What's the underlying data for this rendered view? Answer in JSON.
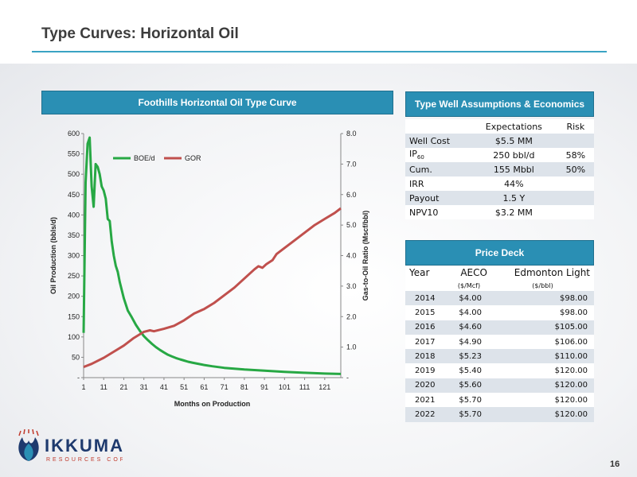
{
  "page": {
    "title": "Type Curves: Horizontal Oil",
    "page_number": "16",
    "logo_text": "IKKUMA",
    "logo_subtext": "RESOURCES CORP."
  },
  "chart_data": {
    "type": "line",
    "title": "Foothills Horizontal Oil Type Curve",
    "xlabel": "Months on Production",
    "ylabel": "Oil Production (bbls/d)",
    "y2label": "Gas-to-Oil Ratio (Mscf/bbl)",
    "xlim": [
      1,
      129
    ],
    "ylim": [
      0,
      600
    ],
    "y2lim": [
      0,
      8
    ],
    "x_ticks": [
      1,
      11,
      21,
      31,
      41,
      51,
      61,
      71,
      81,
      91,
      101,
      111,
      121
    ],
    "y_ticks": [
      "-",
      "50",
      "100",
      "150",
      "200",
      "250",
      "300",
      "350",
      "400",
      "450",
      "500",
      "550",
      "600"
    ],
    "y2_ticks": [
      "-",
      "1.0",
      "2.0",
      "3.0",
      "4.0",
      "5.0",
      "6.0",
      "7.0",
      "8.0"
    ],
    "legend_position": "top-left",
    "series": [
      {
        "name": "BOE/d",
        "axis": "left",
        "color": "#27a844",
        "points": [
          [
            1,
            110
          ],
          [
            2,
            480
          ],
          [
            3,
            575
          ],
          [
            4,
            590
          ],
          [
            5,
            470
          ],
          [
            6,
            420
          ],
          [
            7,
            525
          ],
          [
            8,
            518
          ],
          [
            9,
            500
          ],
          [
            10,
            470
          ],
          [
            11,
            460
          ],
          [
            12,
            440
          ],
          [
            13,
            390
          ],
          [
            14,
            385
          ],
          [
            15,
            335
          ],
          [
            16,
            300
          ],
          [
            17,
            275
          ],
          [
            18,
            260
          ],
          [
            19,
            235
          ],
          [
            21,
            195
          ],
          [
            23,
            165
          ],
          [
            25,
            148
          ],
          [
            27,
            130
          ],
          [
            29,
            115
          ],
          [
            31,
            102
          ],
          [
            33,
            92
          ],
          [
            35,
            83
          ],
          [
            37,
            75
          ],
          [
            39,
            68
          ],
          [
            41,
            62
          ],
          [
            43,
            56
          ],
          [
            45,
            52
          ],
          [
            47,
            48
          ],
          [
            49,
            45
          ],
          [
            51,
            42
          ],
          [
            53,
            39
          ],
          [
            55,
            37
          ],
          [
            57,
            35
          ],
          [
            59,
            33
          ],
          [
            61,
            31
          ],
          [
            65,
            28
          ],
          [
            71,
            24
          ],
          [
            81,
            20
          ],
          [
            91,
            17
          ],
          [
            101,
            14
          ],
          [
            111,
            12
          ],
          [
            121,
            10
          ],
          [
            129,
            9
          ]
        ]
      },
      {
        "name": "GOR",
        "axis": "right",
        "color": "#c0504d",
        "points": [
          [
            1,
            0.35
          ],
          [
            5,
            0.45
          ],
          [
            11,
            0.65
          ],
          [
            16,
            0.85
          ],
          [
            21,
            1.05
          ],
          [
            26,
            1.3
          ],
          [
            31,
            1.5
          ],
          [
            34,
            1.55
          ],
          [
            36,
            1.52
          ],
          [
            41,
            1.6
          ],
          [
            46,
            1.7
          ],
          [
            51,
            1.88
          ],
          [
            56,
            2.1
          ],
          [
            61,
            2.25
          ],
          [
            66,
            2.45
          ],
          [
            71,
            2.7
          ],
          [
            76,
            2.95
          ],
          [
            81,
            3.25
          ],
          [
            86,
            3.55
          ],
          [
            88,
            3.65
          ],
          [
            90,
            3.6
          ],
          [
            92,
            3.72
          ],
          [
            95,
            3.85
          ],
          [
            97,
            4.05
          ],
          [
            101,
            4.25
          ],
          [
            106,
            4.5
          ],
          [
            111,
            4.75
          ],
          [
            116,
            5.0
          ],
          [
            121,
            5.2
          ],
          [
            126,
            5.4
          ],
          [
            129,
            5.55
          ]
        ]
      }
    ]
  },
  "assumptions": {
    "title": "Type Well Assumptions & Economics",
    "headers": [
      "",
      "Expectations",
      "Risk"
    ],
    "rows": [
      {
        "label": "Well Cost",
        "sub": "",
        "value": "$5.5 MM",
        "risk": ""
      },
      {
        "label": "IP",
        "sub": "60",
        "value": "250 bbl/d",
        "risk": "58%"
      },
      {
        "label": "Cum.",
        "sub": "",
        "value": "155 Mbbl",
        "risk": "50%"
      },
      {
        "label": "IRR",
        "sub": "",
        "value": "44%",
        "risk": ""
      },
      {
        "label": "Payout",
        "sub": "",
        "value": "1.5 Y",
        "risk": ""
      },
      {
        "label": "NPV10",
        "sub": "",
        "value": "$3.2 MM",
        "risk": ""
      }
    ]
  },
  "price_deck": {
    "title": "Price Deck",
    "headers": [
      "Year",
      "AECO",
      "Edmonton Light"
    ],
    "units": [
      "",
      "($/Mcf)",
      "($/bbl)"
    ],
    "rows": [
      [
        "2014",
        "$4.00",
        "$98.00"
      ],
      [
        "2015",
        "$4.00",
        "$98.00"
      ],
      [
        "2016",
        "$4.60",
        "$105.00"
      ],
      [
        "2017",
        "$4.90",
        "$106.00"
      ],
      [
        "2018",
        "$5.23",
        "$110.00"
      ],
      [
        "2019",
        "$5.40",
        "$120.00"
      ],
      [
        "2020",
        "$5.60",
        "$120.00"
      ],
      [
        "2021",
        "$5.70",
        "$120.00"
      ],
      [
        "2022",
        "$5.70",
        "$120.00"
      ]
    ]
  }
}
